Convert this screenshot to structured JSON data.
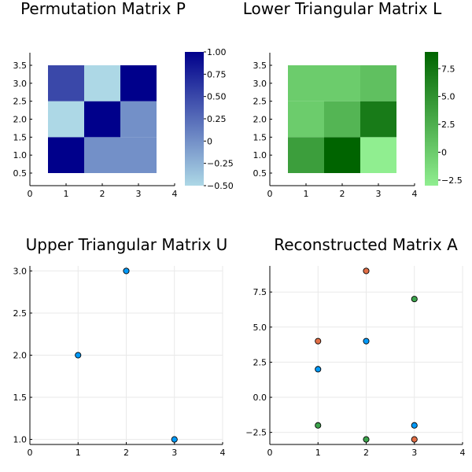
{
  "chart_data": [
    {
      "type": "heatmap",
      "title": "Permutation Matrix P",
      "xlim": [
        0,
        4
      ],
      "ylim": [
        0.15,
        3.85
      ],
      "xticks": [
        0,
        1,
        2,
        3,
        4
      ],
      "yticks": [
        0.5,
        1.0,
        1.5,
        2.0,
        2.5,
        3.0,
        3.5
      ],
      "xtick_labels": [
        "0",
        "1",
        "2",
        "3",
        "4"
      ],
      "ytick_labels": [
        "0.5",
        "1.0",
        "1.5",
        "2.0",
        "2.5",
        "3.0",
        "3.5"
      ],
      "x": [
        1,
        2,
        3
      ],
      "y": [
        1,
        2,
        3
      ],
      "z": [
        [
          1.0,
          0.0,
          0.0
        ],
        [
          -0.5,
          1.0,
          0.0
        ],
        [
          0.5,
          -0.5,
          1.0
        ]
      ],
      "colorbar": {
        "min": -0.5,
        "max": 1.0,
        "ticks": [
          -0.5,
          -0.25,
          0,
          0.25,
          0.5,
          0.75,
          1.0
        ],
        "tick_labels": [
          "−0.50",
          "−0.25",
          "0",
          "0.25",
          "0.50",
          "0.75",
          "1.00"
        ],
        "colors": [
          "#add8e6",
          "#00008b"
        ]
      }
    },
    {
      "type": "heatmap",
      "title": "Lower Triangular Matrix L",
      "xlim": [
        0,
        4
      ],
      "ylim": [
        0.15,
        3.85
      ],
      "xticks": [
        0,
        1,
        2,
        3,
        4
      ],
      "yticks": [
        0.5,
        1.0,
        1.5,
        2.0,
        2.5,
        3.0,
        3.5
      ],
      "xtick_labels": [
        "0",
        "1",
        "2",
        "3",
        "4"
      ],
      "ytick_labels": [
        "0.5",
        "1.0",
        "1.5",
        "2.0",
        "2.5",
        "3.0",
        "3.5"
      ],
      "x": [
        1,
        2,
        3
      ],
      "y": [
        1,
        2,
        3
      ],
      "z": [
        [
          4.0,
          9.0,
          -3.0
        ],
        [
          0.0,
          2.0,
          7.0
        ],
        [
          0.0,
          0.0,
          1.0
        ]
      ],
      "colorbar": {
        "min": -3.0,
        "max": 9.0,
        "ticks": [
          -2.5,
          0,
          2.5,
          5.0,
          7.5
        ],
        "tick_labels": [
          "−2.5",
          "0",
          "2.5",
          "5.0",
          "7.5"
        ],
        "colors": [
          "#90ee90",
          "#006400"
        ]
      }
    },
    {
      "type": "scatter",
      "title": "Upper Triangular Matrix U",
      "xlim": [
        0,
        4
      ],
      "ylim": [
        0.94,
        3.06
      ],
      "xticks": [
        0,
        1,
        2,
        3,
        4
      ],
      "yticks": [
        1.0,
        1.5,
        2.0,
        2.5,
        3.0
      ],
      "xtick_labels": [
        "0",
        "1",
        "2",
        "3",
        "4"
      ],
      "ytick_labels": [
        "1.0",
        "1.5",
        "2.0",
        "2.5",
        "3.0"
      ],
      "series": [
        {
          "x": [
            1,
            2,
            3
          ],
          "y": [
            2,
            3,
            1
          ],
          "color": "#009af9"
        }
      ]
    },
    {
      "type": "scatter",
      "title": "Reconstructed Matrix A",
      "xlim": [
        0,
        4
      ],
      "ylim": [
        -3.36,
        9.36
      ],
      "xticks": [
        0,
        1,
        2,
        3,
        4
      ],
      "yticks": [
        -2.5,
        0,
        2.5,
        5.0,
        7.5
      ],
      "xtick_labels": [
        "0",
        "1",
        "2",
        "3",
        "4"
      ],
      "ytick_labels": [
        "−2.5",
        "0.0",
        "2.5",
        "5.0",
        "7.5"
      ],
      "series": [
        {
          "x": [
            1,
            2,
            3
          ],
          "y": [
            2,
            4,
            -2
          ],
          "color": "#009af9"
        },
        {
          "x": [
            1,
            2,
            3
          ],
          "y": [
            4,
            9,
            -3
          ],
          "color": "#e26f46"
        },
        {
          "x": [
            1,
            2,
            3
          ],
          "y": [
            -2,
            -3,
            7
          ],
          "color": "#3da44d"
        }
      ]
    }
  ]
}
